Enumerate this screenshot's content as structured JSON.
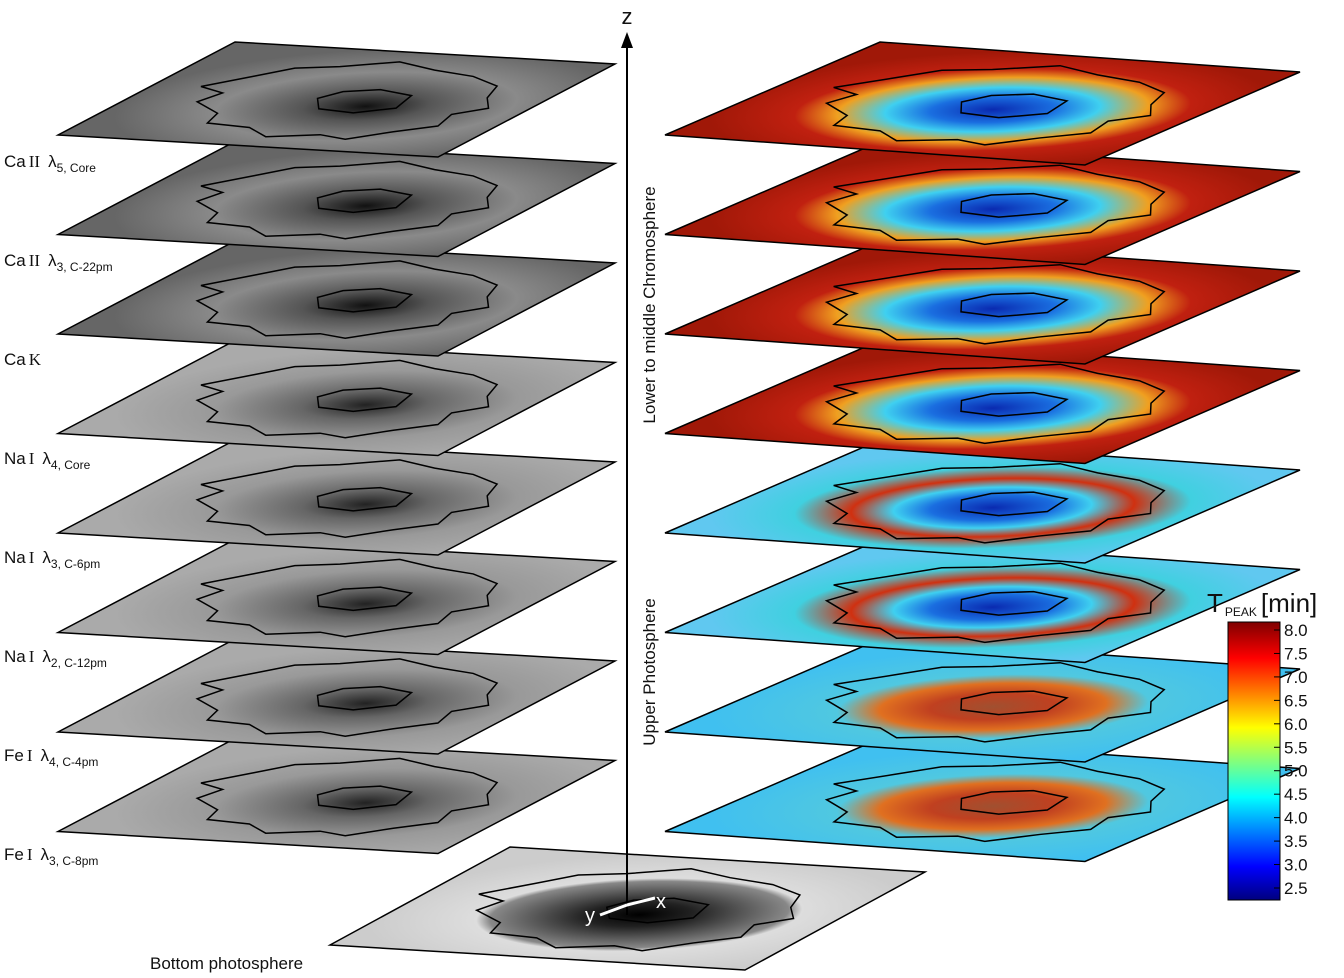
{
  "axes": {
    "z": "z",
    "x": "x",
    "y": "y"
  },
  "regions": {
    "upper": "Lower to middle Chromosphere",
    "lower": "Upper Photosphere"
  },
  "bottom_label": "Bottom photosphere",
  "layers": [
    {
      "element": "Ca",
      "ion": "II",
      "line": "λ",
      "sub": "5, Core"
    },
    {
      "element": "Ca",
      "ion": "II",
      "line": "λ",
      "sub": "3, C-22pm"
    },
    {
      "element": "Ca",
      "ion": "K"
    },
    {
      "element": "Na",
      "ion": "I",
      "line": "λ",
      "sub": "4, Core"
    },
    {
      "element": "Na",
      "ion": "I",
      "line": "λ",
      "sub": "3, C-6pm"
    },
    {
      "element": "Na",
      "ion": "I",
      "line": "λ",
      "sub": "2, C-12pm"
    },
    {
      "element": "Fe",
      "ion": "I",
      "line": "λ",
      "sub": "4, C-4pm"
    },
    {
      "element": "Fe",
      "ion": "I",
      "line": "λ",
      "sub": "3, C-8pm"
    }
  ],
  "colorbar": {
    "symbol": "T",
    "sub": "PEAK",
    "unit": "[min]",
    "ticks": [
      "8.0",
      "7.5",
      "7.0",
      "6.5",
      "6.0",
      "5.5",
      "5.0",
      "4.5",
      "4.0",
      "3.5",
      "3.0",
      "2.5"
    ]
  }
}
